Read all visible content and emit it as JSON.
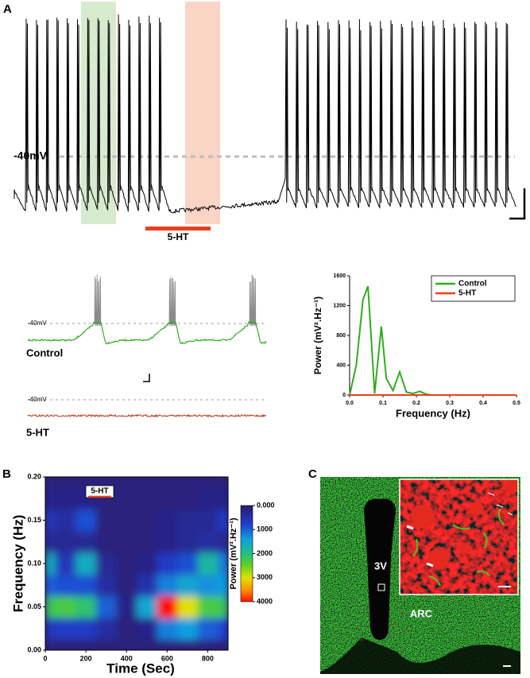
{
  "panel_a": {
    "label": "A",
    "holding_label": "-40mV",
    "drug_bar_label": "5-HT",
    "control_holding_label": "-40mV",
    "control_label": "Control",
    "drug_holding_label": "-40mV",
    "drug_label": "5-HT"
  },
  "panel_b": {
    "label": "B"
  },
  "panel_c": {
    "label": "C",
    "ventricle_label": "3V",
    "nucleus_label": "ARC"
  },
  "chart_data": [
    {
      "type": "line",
      "xlabel": "Frequency (Hz)",
      "ylabel": "Power (mV².Hz⁻¹)",
      "x": [
        0,
        0.02,
        0.04,
        0.055,
        0.075,
        0.095,
        0.11,
        0.13,
        0.15,
        0.17,
        0.19,
        0.21,
        0.23,
        0.25,
        0.3,
        0.35,
        0.4,
        0.45,
        0.5
      ],
      "series": [
        {
          "name": "Control",
          "color": "#33aa22",
          "values": [
            0,
            400,
            1280,
            1460,
            20,
            920,
            220,
            60,
            310,
            40,
            20,
            50,
            10,
            0,
            0,
            0,
            0,
            0,
            0
          ]
        },
        {
          "name": "5-HT",
          "color": "#e8401c",
          "values": [
            0,
            0,
            0,
            0,
            0,
            0,
            0,
            0,
            0,
            0,
            0,
            0,
            0,
            0,
            0,
            0,
            0,
            0,
            0
          ]
        }
      ],
      "xlim": [
        0,
        0.5
      ],
      "ylim": [
        0,
        1600
      ],
      "xticks": [
        {
          "value": 0,
          "label": "0.0"
        },
        0.1,
        0.2,
        0.3,
        0.4,
        0.5
      ],
      "yticks": [
        0,
        400,
        800,
        1200,
        1600
      ],
      "legend": "upper right"
    },
    {
      "type": "contour",
      "xlabel": "Time (Sec)",
      "ylabel": "Frequency (Hz)",
      "colorbar_label": "Power (mV².Hz⁻¹)",
      "annotation": "5-HT",
      "x": [
        0,
        100,
        200,
        300,
        400,
        500,
        600,
        700,
        800,
        900
      ],
      "y": [
        0,
        0.025,
        0.05,
        0.075,
        0.1,
        0.125,
        0.15,
        0.175,
        0.2
      ],
      "z": [
        [
          100,
          100,
          100,
          100,
          100,
          100,
          100,
          100,
          100,
          100
        ],
        [
          600,
          700,
          700,
          400,
          100,
          200,
          1200,
          1400,
          1000,
          800
        ],
        [
          2200,
          2300,
          2100,
          1000,
          200,
          1500,
          4000,
          3000,
          2300,
          2200
        ],
        [
          1000,
          900,
          900,
          400,
          100,
          500,
          1200,
          1500,
          1300,
          1400
        ],
        [
          1600,
          600,
          1600,
          300,
          100,
          200,
          700,
          900,
          1800,
          1200
        ],
        [
          300,
          300,
          300,
          100,
          100,
          100,
          200,
          300,
          400,
          300
        ],
        [
          600,
          400,
          900,
          100,
          100,
          100,
          200,
          300,
          300,
          700
        ],
        [
          200,
          200,
          200,
          100,
          100,
          100,
          100,
          100,
          200,
          200
        ],
        [
          100,
          100,
          100,
          100,
          100,
          100,
          100,
          100,
          100,
          100
        ]
      ],
      "zlim": [
        0,
        4000
      ],
      "zticks": [
        {
          "value": 0,
          "label": "0.000"
        },
        1000,
        2000,
        3000,
        4000
      ],
      "xlim": [
        0,
        900
      ],
      "ylim": [
        0,
        0.2
      ],
      "xticks": [
        0,
        200,
        400,
        600,
        800
      ],
      "yticks": [
        {
          "value": 0,
          "label": "0.00"
        },
        {
          "value": 0.05,
          "label": "0.05"
        },
        {
          "value": 0.1,
          "label": "0.10"
        },
        {
          "value": 0.15,
          "label": "0.15"
        },
        {
          "value": 0.2,
          "label": "0.20"
        }
      ]
    }
  ]
}
